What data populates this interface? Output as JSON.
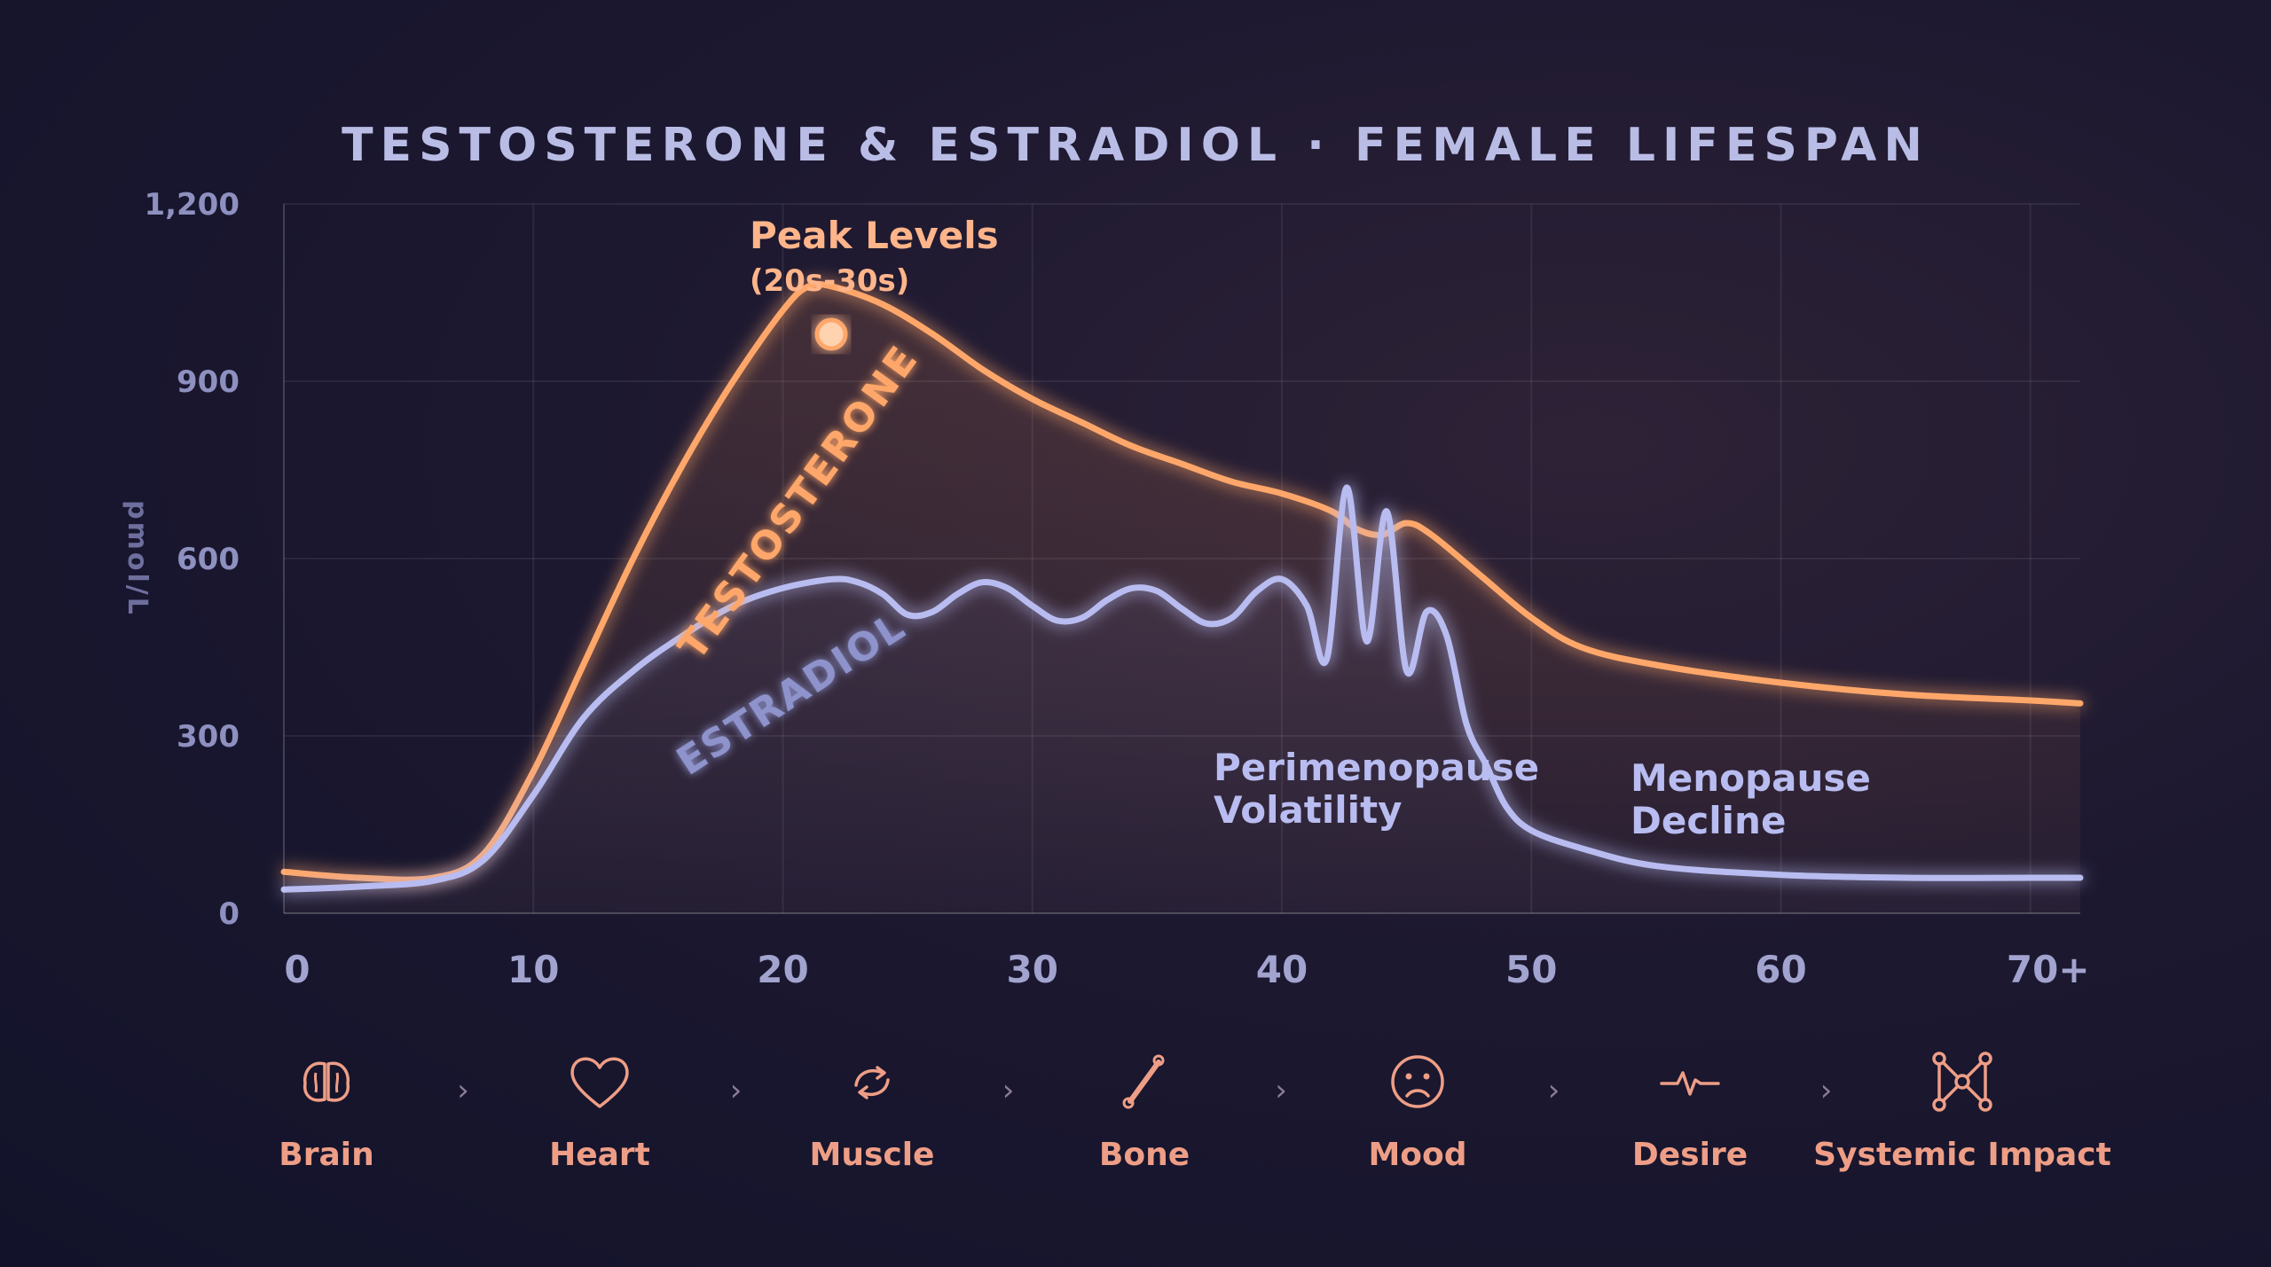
{
  "title": "TESTOSTERONE & ESTRADIOL · FEMALE LIFESPAN",
  "chart_data": {
    "type": "line",
    "ylabel": "pmol/L",
    "xlabel": "",
    "xlim": [
      0,
      72
    ],
    "ylim": [
      0,
      1200
    ],
    "x_ticks": [
      {
        "value": 0,
        "label": "0"
      },
      {
        "value": 10,
        "label": "10"
      },
      {
        "value": 20,
        "label": "20"
      },
      {
        "value": 30,
        "label": "30"
      },
      {
        "value": 40,
        "label": "40"
      },
      {
        "value": 50,
        "label": "50"
      },
      {
        "value": 60,
        "label": "60"
      },
      {
        "value": 70,
        "label": "70+"
      }
    ],
    "y_ticks": [
      {
        "value": 0,
        "label": "0"
      },
      {
        "value": 300,
        "label": "300"
      },
      {
        "value": 600,
        "label": "600"
      },
      {
        "value": 900,
        "label": "900"
      },
      {
        "value": 1200,
        "label": "1,200"
      }
    ],
    "grid": true,
    "series": [
      {
        "name": "TESTOSTERONE",
        "color": "#ffa76a",
        "x": [
          0,
          3,
          6,
          8,
          10,
          12,
          14,
          16,
          18,
          20,
          21,
          22,
          24,
          26,
          28,
          30,
          32,
          34,
          36,
          38,
          40,
          42,
          43,
          44,
          45,
          46,
          48,
          50,
          52,
          55,
          60,
          65,
          70,
          72
        ],
        "y": [
          70,
          60,
          60,
          100,
          240,
          420,
          600,
          760,
          900,
          1020,
          1060,
          1060,
          1030,
          980,
          920,
          870,
          830,
          790,
          760,
          730,
          710,
          680,
          650,
          640,
          660,
          640,
          570,
          500,
          450,
          420,
          390,
          370,
          360,
          355
        ]
      },
      {
        "name": "ESTRADIOL",
        "color": "#b8bcf0",
        "x": [
          0,
          3,
          6,
          8,
          10,
          12,
          14,
          16,
          18,
          20,
          22,
          23,
          24,
          25,
          26,
          27,
          28,
          29,
          30,
          31,
          32,
          33,
          34,
          35,
          36,
          37,
          38,
          39,
          40,
          41,
          41.8,
          42.6,
          43.4,
          44.2,
          45,
          45.8,
          46.6,
          47.4,
          48.2,
          49,
          50,
          52,
          55,
          60,
          65,
          70,
          72
        ],
        "y": [
          40,
          45,
          55,
          90,
          200,
          330,
          410,
          470,
          520,
          550,
          565,
          560,
          540,
          505,
          510,
          540,
          560,
          550,
          520,
          495,
          500,
          530,
          550,
          545,
          515,
          490,
          500,
          545,
          565,
          520,
          430,
          720,
          460,
          680,
          410,
          510,
          470,
          320,
          250,
          180,
          140,
          110,
          80,
          65,
          60,
          60,
          60
        ]
      }
    ],
    "annotations": [
      {
        "id": "peak",
        "text": "Peak Levels",
        "subtext": "(20s-30s)",
        "x": 21.5,
        "y": 1060,
        "color": "#ffb48a"
      },
      {
        "id": "perimenopause",
        "text_lines": [
          "Perimenopause",
          "Volatility"
        ],
        "color": "#b8bcf0"
      },
      {
        "id": "menopause",
        "text_lines": [
          "Menopause",
          "Decline"
        ],
        "color": "#b8bcf0"
      }
    ]
  },
  "organs": [
    {
      "label": "Brain",
      "icon": "brain-icon"
    },
    {
      "label": "Heart",
      "icon": "heart-icon"
    },
    {
      "label": "Muscle",
      "icon": "muscle-icon"
    },
    {
      "label": "Bone",
      "icon": "bone-icon"
    },
    {
      "label": "Mood",
      "icon": "sad-face-icon"
    },
    {
      "label": "Desire",
      "icon": "pulse-icon"
    },
    {
      "label": "Systemic Impact",
      "icon": "network-icon"
    }
  ],
  "chevron": "›"
}
